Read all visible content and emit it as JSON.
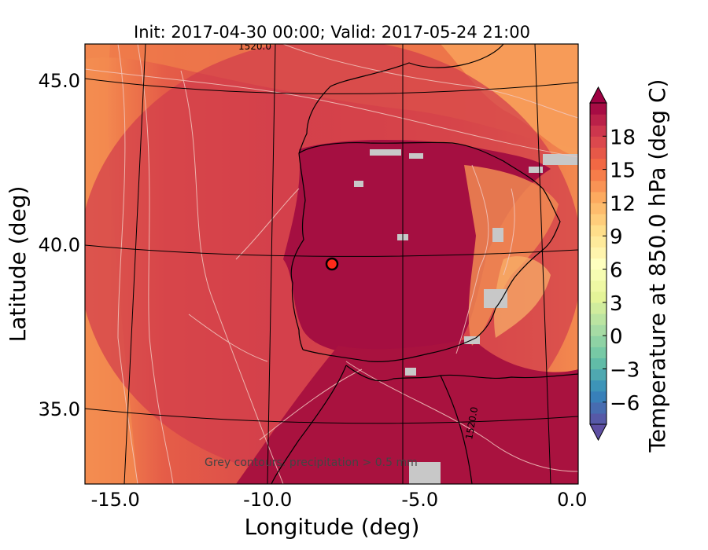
{
  "chart_data": {
    "type": "heatmap",
    "title": "Init: 2017-04-30 00:00; Valid: 2017-05-24 21:00",
    "xlabel": "Longitude (deg)",
    "ylabel": "Latitude (deg)",
    "xlim": [
      -16,
      0.2
    ],
    "ylim": [
      32.7,
      46.1
    ],
    "xticks": [
      -15.0,
      -10.0,
      -5.0,
      0.0
    ],
    "xtick_labels": [
      "-15.0",
      "-10.0",
      "-5.0",
      "0.0"
    ],
    "yticks": [
      35.0,
      40.0,
      45.0
    ],
    "ytick_labels": [
      "35.0",
      "40.0",
      "45.0"
    ],
    "colorbar": {
      "label": "Temperature at 850.0 hPa (deg C)",
      "range": [
        -8,
        21
      ],
      "ticks": [
        -6,
        -3,
        0,
        3,
        6,
        9,
        12,
        15,
        18
      ],
      "tick_labels": [
        "−6",
        "−3",
        "0",
        "3",
        "6",
        "9",
        "12",
        "15",
        "18"
      ],
      "extend": "both",
      "colormap": "Spectral_r"
    },
    "annotation": "Grey contours: precipitation > 0.5 mm",
    "contour_label": "1520.0",
    "marker": {
      "lon": -7.6,
      "lat": 39.4,
      "fill": "#ff2a1a",
      "edge": "#000000"
    },
    "grid": true,
    "colors": {
      "warm": "#a50f41",
      "mid": "#d8464a",
      "cool": "#f47a4b",
      "precip": "#c8c8c8"
    }
  }
}
